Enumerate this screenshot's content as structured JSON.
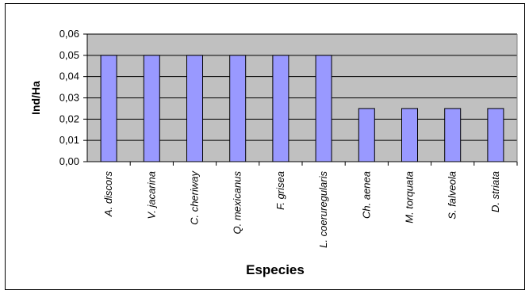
{
  "chart_data": {
    "type": "bar",
    "title": "",
    "xlabel": "Especies",
    "ylabel": "Ind/Ha",
    "ylim": [
      0,
      0.06
    ],
    "yticks": [
      "0,00",
      "0,01",
      "0,02",
      "0,03",
      "0,04",
      "0,05",
      "0,06"
    ],
    "grid": true,
    "legend": "none",
    "categories": [
      "A. discors",
      "V. jacarina",
      "C. cheriway",
      "Q. mexicanus",
      "F. grisea",
      "L. coeruregularis",
      "Ch. aenea",
      "M. torquata",
      "S. falveola",
      "D. striata"
    ],
    "values": [
      0.05,
      0.05,
      0.05,
      0.05,
      0.05,
      0.05,
      0.025,
      0.025,
      0.025,
      0.025
    ],
    "colors": {
      "bar_fill": "#9999ff",
      "bar_stroke": "#000000",
      "plot_bg": "#c0c0c0",
      "grid": "#000000"
    }
  }
}
